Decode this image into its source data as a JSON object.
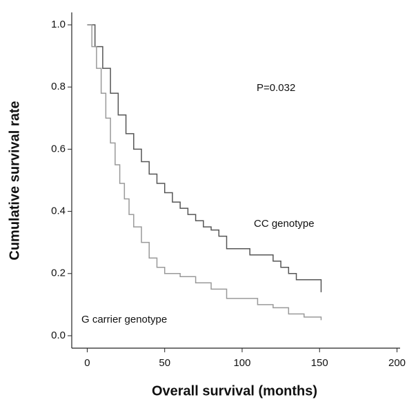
{
  "chart_data": {
    "type": "line",
    "step": true,
    "x_label": "Overall survival (months)",
    "y_label": "Cumulative survival rate",
    "annotation": "P=0.032",
    "xlim": [
      -10,
      202
    ],
    "xticks": [
      0,
      50,
      100,
      150,
      200
    ],
    "ylim": [
      -0.04,
      1.04
    ],
    "yticks": [
      {
        "value": 0,
        "label": "0.0"
      },
      {
        "value": 0.2,
        "label": "0.2"
      },
      {
        "value": 0.4,
        "label": "0.4"
      },
      {
        "value": 0.6,
        "label": "0.6"
      },
      {
        "value": 0.8,
        "label": "0.8"
      },
      {
        "value": 1,
        "label": "1.0"
      }
    ],
    "series": [
      {
        "name": "CC genotype",
        "color": "#555555",
        "x": [
          0,
          5,
          10,
          15,
          20,
          25,
          30,
          35,
          40,
          45,
          50,
          55,
          60,
          65,
          70,
          75,
          80,
          85,
          90,
          100,
          105,
          115,
          120,
          125,
          130,
          135,
          150,
          151
        ],
        "values": [
          1.0,
          0.93,
          0.86,
          0.78,
          0.71,
          0.65,
          0.6,
          0.56,
          0.52,
          0.49,
          0.46,
          0.43,
          0.41,
          0.39,
          0.37,
          0.35,
          0.34,
          0.32,
          0.28,
          0.28,
          0.26,
          0.26,
          0.24,
          0.22,
          0.2,
          0.18,
          0.18,
          0.14
        ]
      },
      {
        "name": "G carrier genotype",
        "color": "#999999",
        "x": [
          0,
          3,
          6,
          9,
          12,
          15,
          18,
          21,
          24,
          27,
          30,
          35,
          40,
          45,
          50,
          60,
          70,
          80,
          90,
          100,
          110,
          120,
          130,
          140,
          150,
          151
        ],
        "values": [
          1.0,
          0.93,
          0.86,
          0.78,
          0.7,
          0.62,
          0.55,
          0.49,
          0.44,
          0.39,
          0.35,
          0.3,
          0.25,
          0.22,
          0.2,
          0.19,
          0.17,
          0.15,
          0.12,
          0.12,
          0.1,
          0.09,
          0.07,
          0.06,
          0.06,
          0.05
        ]
      }
    ]
  }
}
